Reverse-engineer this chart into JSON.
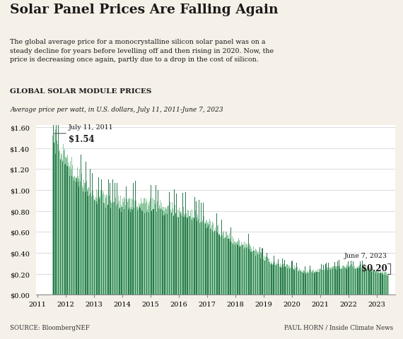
{
  "title": "Solar Panel Prices Are Falling Again",
  "subtitle": "The global average price for a monocrystalline silicon solar panel was on a\nsteady decline for years before levelling off and then rising in 2020. Now, the\nprice is decreasing once again, partly due to a drop in the cost of silicon.",
  "chart_title": "GLOBAL SOLAR MODULE PRICES",
  "chart_subtitle": "Average price per watt, in U.S. dollars, July 11, 2011-June 7, 2023",
  "source_left": "SOURCE: BloombergNEF",
  "source_right": "PAUL HORN / Inside Climate News",
  "bg_color": "#f5f0e8",
  "plot_bg_color": "#ffffff",
  "bar_color_dark": "#2d7a4f",
  "bar_color_light": "#8dc8a0",
  "ylim": [
    0,
    1.6
  ],
  "ytick_labels": [
    "$0.00",
    "$0.20",
    "$0.40",
    "$0.60",
    "$0.80",
    "$1.00",
    "$1.20",
    "$1.40",
    "$1.60"
  ],
  "ytick_values": [
    0,
    0.2,
    0.4,
    0.6,
    0.8,
    1.0,
    1.2,
    1.4,
    1.6
  ],
  "first_label": "July 11, 2011",
  "first_value": "$1.54",
  "last_label": "June 7, 2023",
  "last_value": "$0.20",
  "annotation_line_color": "#555555",
  "key_points_x": [
    0,
    26,
    52,
    78,
    104,
    130,
    156,
    182,
    208,
    234,
    260,
    286,
    312,
    338,
    364,
    390,
    416,
    442,
    468,
    494,
    520,
    546,
    572,
    598,
    624
  ],
  "key_points_y": [
    1.54,
    1.3,
    1.1,
    0.97,
    0.9,
    0.88,
    0.87,
    0.86,
    0.84,
    0.8,
    0.78,
    0.7,
    0.6,
    0.52,
    0.47,
    0.36,
    0.29,
    0.27,
    0.22,
    0.23,
    0.26,
    0.27,
    0.27,
    0.23,
    0.2
  ]
}
